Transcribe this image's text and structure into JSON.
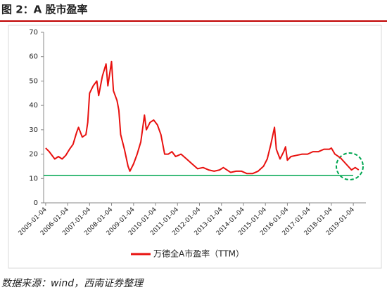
{
  "chart_data": {
    "type": "line",
    "title": "图 2：A 股市盈率",
    "source": "数据来源：wind，西南证券整理",
    "x": [
      "2005-01-04",
      "2005-03-04",
      "2005-06-04",
      "2005-08-04",
      "2005-10-04",
      "2005-12-04",
      "2006-02-04",
      "2006-04-04",
      "2006-06-04",
      "2006-07-04",
      "2006-09-04",
      "2006-11-04",
      "2006-12-04",
      "2007-01-04",
      "2007-03-04",
      "2007-05-04",
      "2007-06-04",
      "2007-08-04",
      "2007-10-04",
      "2007-11-04",
      "2007-12-04",
      "2008-01-04",
      "2008-02-04",
      "2008-04-04",
      "2008-05-04",
      "2008-06-04",
      "2008-08-04",
      "2008-10-04",
      "2008-11-04",
      "2009-01-04",
      "2009-03-04",
      "2009-05-04",
      "2009-07-04",
      "2009-08-04",
      "2009-10-04",
      "2009-12-04",
      "2010-02-04",
      "2010-04-04",
      "2010-06-04",
      "2010-08-04",
      "2010-10-04",
      "2010-12-04",
      "2011-03-04",
      "2011-06-04",
      "2011-09-04",
      "2011-12-04",
      "2012-03-04",
      "2012-06-04",
      "2012-09-04",
      "2012-12-04",
      "2013-02-04",
      "2013-06-04",
      "2013-09-04",
      "2013-12-04",
      "2014-03-04",
      "2014-06-04",
      "2014-09-04",
      "2014-12-04",
      "2015-02-04",
      "2015-04-04",
      "2015-06-04",
      "2015-07-04",
      "2015-09-04",
      "2015-11-04",
      "2015-12-04",
      "2016-01-04",
      "2016-03-04",
      "2016-06-04",
      "2016-09-04",
      "2016-12-04",
      "2017-03-04",
      "2017-06-04",
      "2017-09-04",
      "2017-12-04",
      "2018-01-04",
      "2018-03-04",
      "2018-06-04",
      "2018-09-04",
      "2018-12-04",
      "2019-02-04",
      "2019-04-04"
    ],
    "series": [
      {
        "name": "万德全A市盈率（TTM）",
        "color": "#e8110f",
        "values": [
          22.5,
          21,
          18,
          19,
          18,
          19.5,
          22,
          24,
          29,
          31,
          27,
          28,
          33,
          45,
          48,
          50,
          44,
          52,
          57,
          48,
          53,
          58,
          46,
          42,
          38,
          28,
          22,
          15,
          13,
          16,
          20,
          25,
          36,
          30,
          33,
          34,
          32,
          28,
          20,
          20,
          21,
          19,
          20,
          18,
          16,
          14,
          14.5,
          13.5,
          13,
          13.5,
          14.5,
          12.5,
          13,
          13,
          12,
          12,
          13,
          15,
          18,
          24,
          31,
          22,
          18,
          21,
          23,
          17.5,
          19,
          19.5,
          20,
          20,
          21,
          21,
          22,
          22,
          22.5,
          20,
          18.5,
          16,
          13.5,
          14.5,
          13.5
        ]
      }
    ],
    "reference_line": {
      "value": 11.2,
      "color": "#00a651"
    },
    "xlim": [
      "2004-12-01",
      "2019-08-01"
    ],
    "xticks": [
      "2005-01-04",
      "2006-01-04",
      "2007-01-04",
      "2008-01-04",
      "2009-01-04",
      "2010-01-04",
      "2011-01-04",
      "2012-01-04",
      "2013-01-04",
      "2014-01-04",
      "2015-01-04",
      "2016-01-04",
      "2017-01-04",
      "2018-01-04",
      "2019-01-04"
    ],
    "ylim": [
      0,
      70
    ],
    "yticks": [
      0,
      10,
      20,
      30,
      40,
      50,
      60,
      70
    ]
  }
}
